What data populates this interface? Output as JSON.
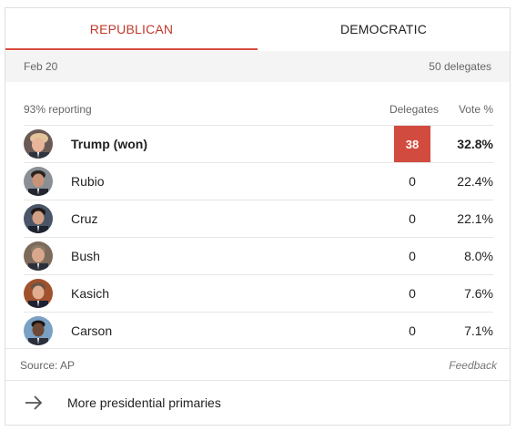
{
  "tabs": [
    {
      "label": "REPUBLICAN",
      "active": true
    },
    {
      "label": "DEMOCRATIC",
      "active": false
    }
  ],
  "date_bar": {
    "date": "Feb 20",
    "delegates": "50 delegates"
  },
  "table": {
    "reporting": "93% reporting",
    "col_delegates": "Delegates",
    "col_vote": "Vote %",
    "rows": [
      {
        "name": "Trump (won)",
        "delegates": "38",
        "vote": "32.8%",
        "winner": true
      },
      {
        "name": "Rubio",
        "delegates": "0",
        "vote": "22.4%",
        "winner": false
      },
      {
        "name": "Cruz",
        "delegates": "0",
        "vote": "22.1%",
        "winner": false
      },
      {
        "name": "Bush",
        "delegates": "0",
        "vote": "8.0%",
        "winner": false
      },
      {
        "name": "Kasich",
        "delegates": "0",
        "vote": "7.6%",
        "winner": false
      },
      {
        "name": "Carson",
        "delegates": "0",
        "vote": "7.1%",
        "winner": false
      }
    ]
  },
  "footer": {
    "source": "Source: AP",
    "feedback": "Feedback",
    "more_link": "More presidential primaries"
  },
  "colors": {
    "accent": "#d24b3f",
    "tab_active_text": "#c0392b",
    "border": "#e6e6e6",
    "date_bar_bg": "#f4f4f4"
  },
  "icons": {
    "more_arrow": "arrow-right-icon",
    "avatar": "candidate-photo"
  }
}
